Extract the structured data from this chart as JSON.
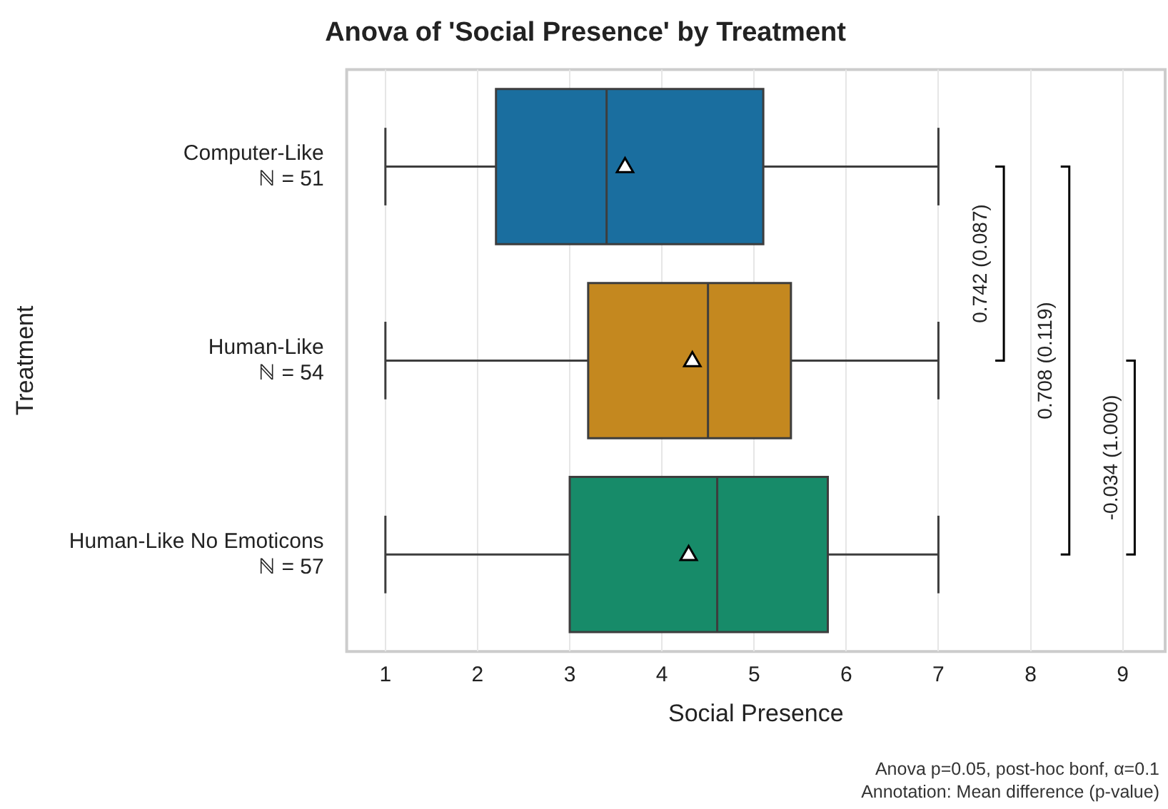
{
  "chart_data": {
    "type": "box",
    "title": "Anova of 'Social Presence' by Treatment",
    "xlabel": "Social Presence",
    "ylabel": "Treatment",
    "orientation": "horizontal",
    "categories": [
      "Computer-Like\nℕ = 51",
      "Human-Like\nℕ = 54",
      "Human-Like No Emoticons\nℕ = 57"
    ],
    "colors": [
      "#1a6e9f",
      "#c4881f",
      "#178b69"
    ],
    "boxes": [
      {
        "low": 1,
        "q1": 2.2,
        "median": 3.4,
        "q3": 5.1,
        "high": 7,
        "mean": 3.6
      },
      {
        "low": 1,
        "q1": 3.2,
        "median": 4.5,
        "q3": 5.4,
        "high": 7,
        "mean": 4.33
      },
      {
        "low": 1,
        "q1": 3.0,
        "median": 4.6,
        "q3": 5.8,
        "high": 7,
        "mean": 4.29
      }
    ],
    "marker": "triangle",
    "xlim": [
      0.58,
      9.46
    ],
    "xticks": [
      1,
      2,
      3,
      4,
      5,
      6,
      7,
      8,
      9
    ],
    "grid": "x",
    "legend": false,
    "annotations": [
      "0.742 (0.087)",
      "0.708 (0.119)",
      "-0.034 (1.000)",
      "Anova p=0.05, post-hoc bonf, α=0.1",
      "Annotation: Mean difference (p-value)"
    ]
  }
}
